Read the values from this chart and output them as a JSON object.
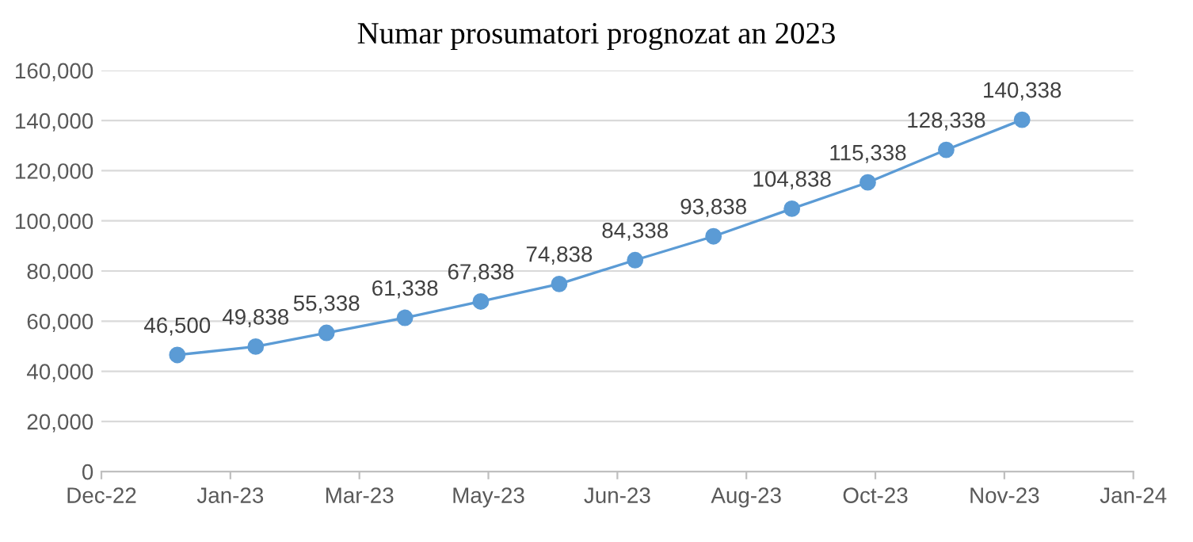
{
  "chart_data": {
    "type": "line",
    "title": "Numar prosumatori prognozat an 2023",
    "x": [
      "2023-01-01",
      "2023-02-01",
      "2023-03-01",
      "2023-04-01",
      "2023-05-01",
      "2023-06-01",
      "2023-07-01",
      "2023-08-01",
      "2023-09-01",
      "2023-10-01",
      "2023-11-01",
      "2023-12-01"
    ],
    "series": [
      {
        "color": "#5b9bd5",
        "values": [
          46500,
          49838,
          55338,
          61338,
          67838,
          74838,
          84338,
          93838,
          104838,
          115338,
          128338,
          140338
        ],
        "value_labels": [
          "46,500",
          "49,838",
          "55,338",
          "61,338",
          "67,838",
          "74,838",
          "84,338",
          "93,838",
          "104,838",
          "115,338",
          "128,338",
          "140,338"
        ]
      }
    ],
    "xlim": [
      "2022-12-02",
      "2024-01-14"
    ],
    "xticks": [
      {
        "value": "2022-12-02",
        "label": "Dec-22"
      },
      {
        "value": "2023-01-22",
        "label": "Jan-23"
      },
      {
        "value": "2023-03-14",
        "label": "Mar-23"
      },
      {
        "value": "2023-05-04",
        "label": "May-23"
      },
      {
        "value": "2023-06-24",
        "label": "Jun-23"
      },
      {
        "value": "2023-08-14",
        "label": "Aug-23"
      },
      {
        "value": "2023-10-04",
        "label": "Oct-23"
      },
      {
        "value": "2023-11-24",
        "label": "Nov-23"
      },
      {
        "value": "2024-01-14",
        "label": "Jan-24"
      }
    ],
    "ylim": [
      0,
      160000
    ],
    "yticks": [
      {
        "value": 0,
        "label": "0"
      },
      {
        "value": 20000,
        "label": "20,000"
      },
      {
        "value": 40000,
        "label": "40,000"
      },
      {
        "value": 60000,
        "label": "60,000"
      },
      {
        "value": 80000,
        "label": "80,000"
      },
      {
        "value": 100000,
        "label": "100,000"
      },
      {
        "value": 120000,
        "label": "120,000"
      },
      {
        "value": 140000,
        "label": "140,000"
      },
      {
        "value": 160000,
        "label": "160,000"
      }
    ],
    "grid": "y",
    "marker": "circle",
    "line_style": "solid",
    "legend": false
  }
}
